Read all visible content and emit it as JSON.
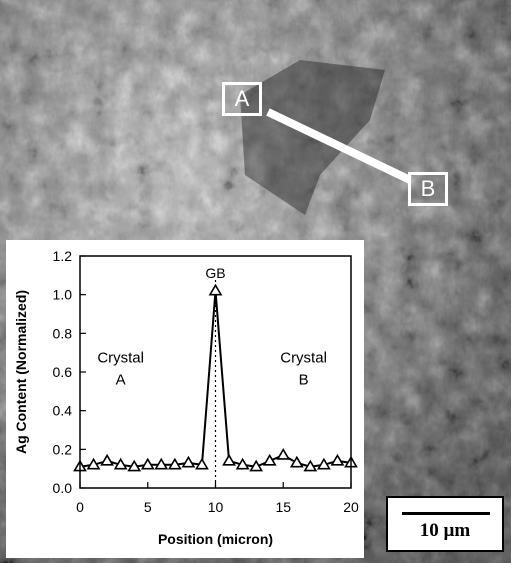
{
  "image": {
    "marker_a_label": "A",
    "marker_b_label": "B",
    "scale_bar_label": "10 µm"
  },
  "chart_data": {
    "type": "line",
    "xlabel": "Position (micron)",
    "ylabel": "Ag Content (Normalized)",
    "xlim": [
      0,
      20
    ],
    "ylim": [
      0,
      1.2
    ],
    "xticks": [
      0,
      5,
      10,
      15,
      20
    ],
    "yticks": [
      0.0,
      0.2,
      0.4,
      0.6,
      0.8,
      1.0,
      1.2
    ],
    "grid": false,
    "marker": "open-triangle",
    "reference_line": {
      "x": 10,
      "style": "dotted",
      "label": "GB"
    },
    "annotations": [
      {
        "text": "Crystal\nA",
        "x": 3,
        "y": 0.65
      },
      {
        "text": "Crystal\nB",
        "x": 16.5,
        "y": 0.65
      }
    ],
    "series": [
      {
        "x": [
          0,
          1,
          2,
          3,
          4,
          5,
          6,
          7,
          8,
          9,
          10,
          11,
          12,
          13,
          14,
          15,
          16,
          17,
          18,
          19,
          20
        ],
        "values": [
          0.11,
          0.12,
          0.14,
          0.12,
          0.11,
          0.12,
          0.12,
          0.12,
          0.13,
          0.12,
          1.02,
          0.14,
          0.12,
          0.11,
          0.14,
          0.17,
          0.13,
          0.11,
          0.12,
          0.14,
          0.13
        ]
      }
    ]
  }
}
